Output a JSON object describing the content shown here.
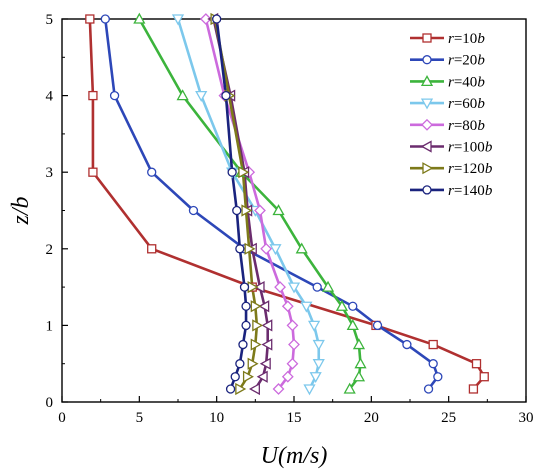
{
  "chart_data": {
    "type": "line",
    "xlabel": "U(m/s)",
    "ylabel": "z/b",
    "xlim": [
      0,
      30
    ],
    "ylim": [
      0,
      5
    ],
    "xticks": [
      "0",
      "5",
      "10",
      "15",
      "20",
      "25",
      "30"
    ],
    "yticks": [
      "0",
      "1",
      "2",
      "3",
      "4",
      "5"
    ],
    "grid": false,
    "legend_position": "top-right",
    "series": [
      {
        "name": "r=10b",
        "label_parts": [
          "r",
          "=10",
          "b"
        ],
        "color": "#b03030",
        "marker": "square",
        "x": [
          26.6,
          27.3,
          26.8,
          24.0,
          20.3,
          12.3,
          5.8,
          2.0,
          2.0,
          1.8
        ],
        "y": [
          0.17,
          0.33,
          0.5,
          0.75,
          1.0,
          1.5,
          2.0,
          3.0,
          4.0,
          5.0
        ]
      },
      {
        "name": "r=20b",
        "label_parts": [
          "r",
          "=20",
          "b"
        ],
        "color": "#2d47b8",
        "marker": "circle",
        "x": [
          23.7,
          24.3,
          24.0,
          22.3,
          20.4,
          18.8,
          16.5,
          11.8,
          8.5,
          5.8,
          3.4,
          2.8
        ],
        "y": [
          0.17,
          0.33,
          0.5,
          0.75,
          1.0,
          1.25,
          1.5,
          2.0,
          2.5,
          3.0,
          4.0,
          5.0
        ]
      },
      {
        "name": "r=40b",
        "label_parts": [
          "r",
          "=40",
          "b"
        ],
        "color": "#3cb43c",
        "marker": "triangle-up",
        "x": [
          18.6,
          19.2,
          19.3,
          19.2,
          18.8,
          18.1,
          17.2,
          15.5,
          14.0,
          11.6,
          7.8,
          5.0
        ],
        "y": [
          0.17,
          0.33,
          0.5,
          0.75,
          1.0,
          1.25,
          1.5,
          2.0,
          2.5,
          3.0,
          4.0,
          5.0
        ]
      },
      {
        "name": "r=60b",
        "label_parts": [
          "r",
          "=60",
          "b"
        ],
        "color": "#7cc8ec",
        "marker": "triangle-down",
        "x": [
          16.0,
          16.4,
          16.6,
          16.6,
          16.3,
          15.8,
          15.0,
          13.8,
          12.5,
          11.0,
          9.0,
          7.5
        ],
        "y": [
          0.17,
          0.33,
          0.5,
          0.75,
          1.0,
          1.25,
          1.5,
          2.0,
          2.5,
          3.0,
          4.0,
          5.0
        ]
      },
      {
        "name": "r=80b",
        "label_parts": [
          "r",
          "=80",
          "b"
        ],
        "color": "#cc6add",
        "marker": "diamond",
        "x": [
          14.0,
          14.6,
          14.9,
          15.0,
          14.9,
          14.6,
          14.1,
          13.2,
          12.8,
          12.1,
          10.5,
          9.3
        ],
        "y": [
          0.17,
          0.33,
          0.5,
          0.75,
          1.0,
          1.25,
          1.5,
          2.0,
          2.5,
          3.0,
          4.0,
          5.0
        ]
      },
      {
        "name": "r=100b",
        "label_parts": [
          "r",
          "=100",
          "b"
        ],
        "color": "#6b2c6e",
        "marker": "triangle-left",
        "x": [
          12.5,
          13.0,
          13.2,
          13.3,
          13.3,
          13.1,
          12.8,
          12.3,
          12.0,
          11.8,
          10.9,
          9.8
        ],
        "y": [
          0.17,
          0.33,
          0.5,
          0.75,
          1.0,
          1.25,
          1.5,
          2.0,
          2.5,
          3.0,
          4.0,
          5.0
        ]
      },
      {
        "name": "r=120b",
        "label_parts": [
          "r",
          "=120",
          "b"
        ],
        "color": "#7d7a1a",
        "marker": "triangle-right",
        "x": [
          11.5,
          12.0,
          12.3,
          12.5,
          12.6,
          12.5,
          12.3,
          12.1,
          11.9,
          11.7,
          10.8,
          9.9
        ],
        "y": [
          0.17,
          0.33,
          0.5,
          0.75,
          1.0,
          1.25,
          1.5,
          2.0,
          2.5,
          3.0,
          4.0,
          5.0
        ]
      },
      {
        "name": "r=140b",
        "label_parts": [
          "r",
          "=140",
          "b"
        ],
        "color": "#1a237e",
        "marker": "circle",
        "x": [
          10.9,
          11.2,
          11.5,
          11.7,
          11.9,
          11.9,
          11.8,
          11.5,
          11.3,
          11.0,
          10.6,
          10.0
        ],
        "y": [
          0.17,
          0.33,
          0.5,
          0.75,
          1.0,
          1.25,
          1.5,
          2.0,
          2.5,
          3.0,
          4.0,
          5.0
        ]
      }
    ]
  }
}
